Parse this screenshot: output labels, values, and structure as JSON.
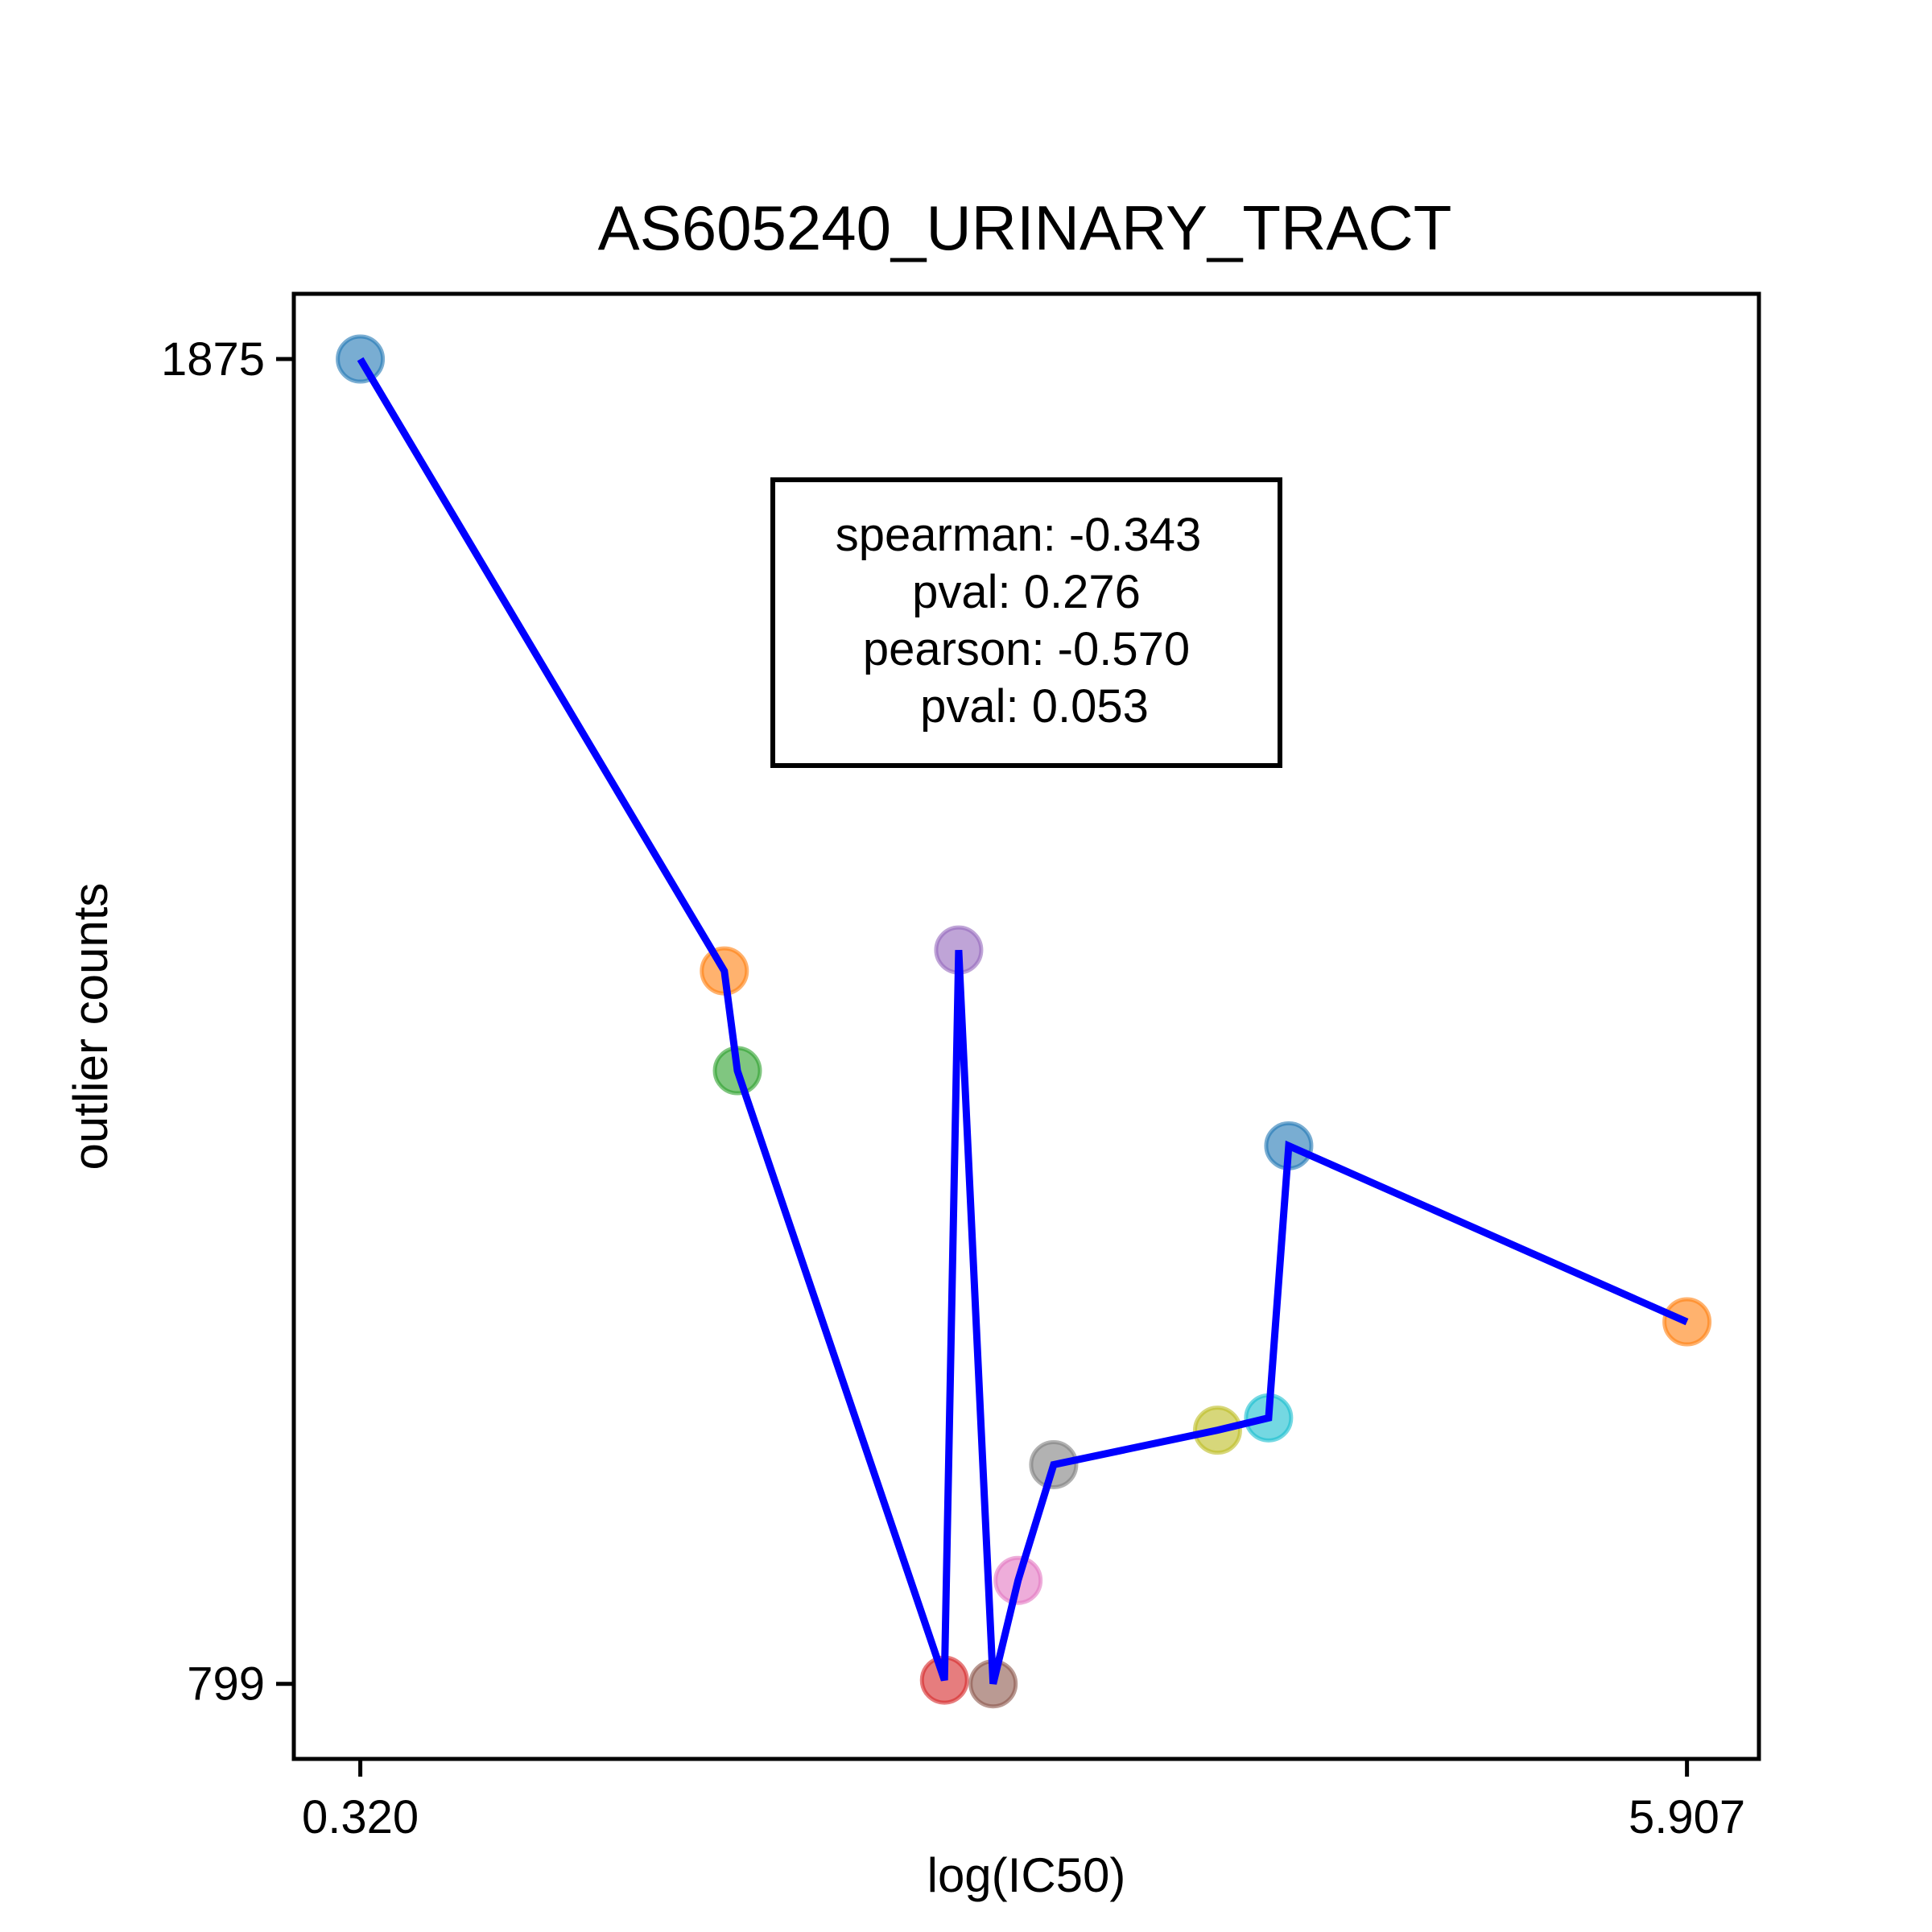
{
  "chart_data": {
    "type": "line",
    "title": "AS605240_URINARY_TRACT",
    "xlabel": "log(IC50)",
    "ylabel": "outlier counts",
    "xlim": [
      0.04,
      6.21
    ],
    "ylim": [
      738,
      1928
    ],
    "xticks": [
      0.32,
      5.907
    ],
    "xtick_labels": [
      "0.320",
      "5.907"
    ],
    "yticks": [
      799,
      1875
    ],
    "ytick_labels": [
      "799",
      "1875"
    ],
    "line_color": "#0000ff",
    "points": [
      {
        "x": 0.32,
        "y": 1875,
        "color": "#1f77b4"
      },
      {
        "x": 1.853,
        "y": 1378,
        "color": "#ff7f0e"
      },
      {
        "x": 1.908,
        "y": 1297,
        "color": "#2ca02c"
      },
      {
        "x": 2.78,
        "y": 802,
        "color": "#d62728"
      },
      {
        "x": 2.84,
        "y": 1395,
        "color": "#9467bd"
      },
      {
        "x": 2.985,
        "y": 799,
        "color": "#8c564b"
      },
      {
        "x": 3.09,
        "y": 883,
        "color": "#e377c2"
      },
      {
        "x": 3.24,
        "y": 977,
        "color": "#7f7f7f"
      },
      {
        "x": 3.93,
        "y": 1005,
        "color": "#bcbd22"
      },
      {
        "x": 4.145,
        "y": 1015,
        "color": "#17becf"
      },
      {
        "x": 4.23,
        "y": 1236,
        "color": "#1f77b4"
      },
      {
        "x": 5.907,
        "y": 1093,
        "color": "#ff7f0e"
      }
    ],
    "stats": {
      "lines": [
        "spearman: -0.343",
        "pval: 0.276",
        "pearson: -0.570",
        "pval: 0.053"
      ]
    }
  }
}
